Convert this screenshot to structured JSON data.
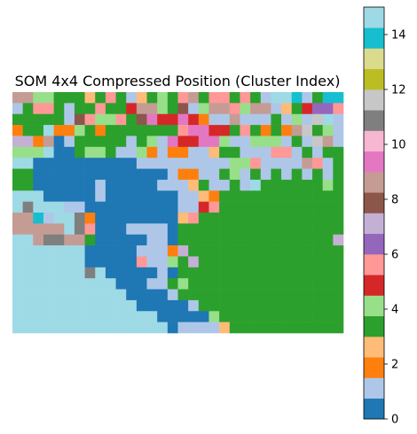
{
  "chart_data": {
    "type": "heatmap",
    "title": "SOM 4x4 Compressed Position (Cluster Index)",
    "axis": "off",
    "colorbar": {
      "cmap": "tab20",
      "vmin": 0,
      "vmax": 15,
      "ticks": [
        "0",
        "2",
        "4",
        "6",
        "8",
        "10",
        "12",
        "14"
      ],
      "tick_values": [
        0,
        2,
        4,
        6,
        8,
        10,
        12,
        14
      ],
      "colors": [
        "#1f77b4",
        "#aec7e8",
        "#ff7f0e",
        "#ffbb78",
        "#2ca02c",
        "#98df8a",
        "#d62728",
        "#ff9896",
        "#9467bd",
        "#c5b0d5",
        "#8c564b",
        "#c49c94",
        "#e377c2",
        "#f7b6d2",
        "#7f7f7f",
        "#c7c7c7",
        "#bcbd22",
        "#dbdb8d",
        "#17becf",
        "#9edae5"
      ]
    },
    "image": {
      "grid": [
        "LLFFEEEDEHEBDEFEHLEHHEHEBTTSBESS",
        "BEHHEBEEHEEGLLFEKBFLLHFLLBDEGIIH",
        "EEEEEBKHFFHEKMGGMGCBBLBBBEBFBPTB",
        "CEETCCFECEEEEEEEHMMGGEHECECLPEFB",
        "JJCLABEEEEEBEFBMGGMMFBBFFFBEBPLB",
        "FFFTAAEFFEBBFCBCCBBDEEBBBHHBEBEE",
        "TTAAAAAAAAAABBBBBBBBBFFHBBBBLHBE",
        "EEAAAAAAAAAAAAABCCBBEFBEBEBEBEBE",
        "EEAAAAAABAAAAABBBDEBBEBTEEEEEEFE",
        "TTTAAAAABAAAAAAABBDCEEEEEEEEEEEE",
        "TOTTTBBAAAAAAAAABBGHEEEEEEEEEEEE",
        "LLSBTTOCAAAAAAAADHEEEEEEEEEEEEEE",
        "LLLLLTOHAAABBBBAEEEEEEEEEEEEEEEE",
        "TTLOOLLEAAAAABBAEEEEEEEEEEEEEEEJ",
        "TTTTTTTAAAAABBBCJEEEEEEEEEEEEEEE",
        "TTTTTTTAAAAAHBBFEJEEEEEEEEEEEEEE",
        "TTTTTTTOTAAAAABAEEEEEEEEEEEEEEEE",
        "TTTTTTTTTTAAABBEFEEEEEEEEEEEEEEE",
        "TTTTTTTTTTTAAAABEEEEEEEEEEEEEEEE",
        "TTTTTTTTTTTTAAAAABEEEEEEEEEEEEEE",
        "TTTTTTTTTTTTTTAAAAAFEEEEEEEEEEEE",
        "TTTTTTTTTTTTTTTABBBBDEEEEEEEEEEE"
      ],
      "legend": {
        "A": 0,
        "B": 1,
        "C": 2,
        "D": 3,
        "E": 4,
        "F": 5,
        "G": 6,
        "H": 7,
        "I": 8,
        "J": 9,
        "K": 10,
        "L": 11,
        "M": 12,
        "N": 13,
        "O": 14,
        "P": 15,
        "Q": 16,
        "R": 17,
        "S": 18,
        "T": 19
      }
    }
  }
}
